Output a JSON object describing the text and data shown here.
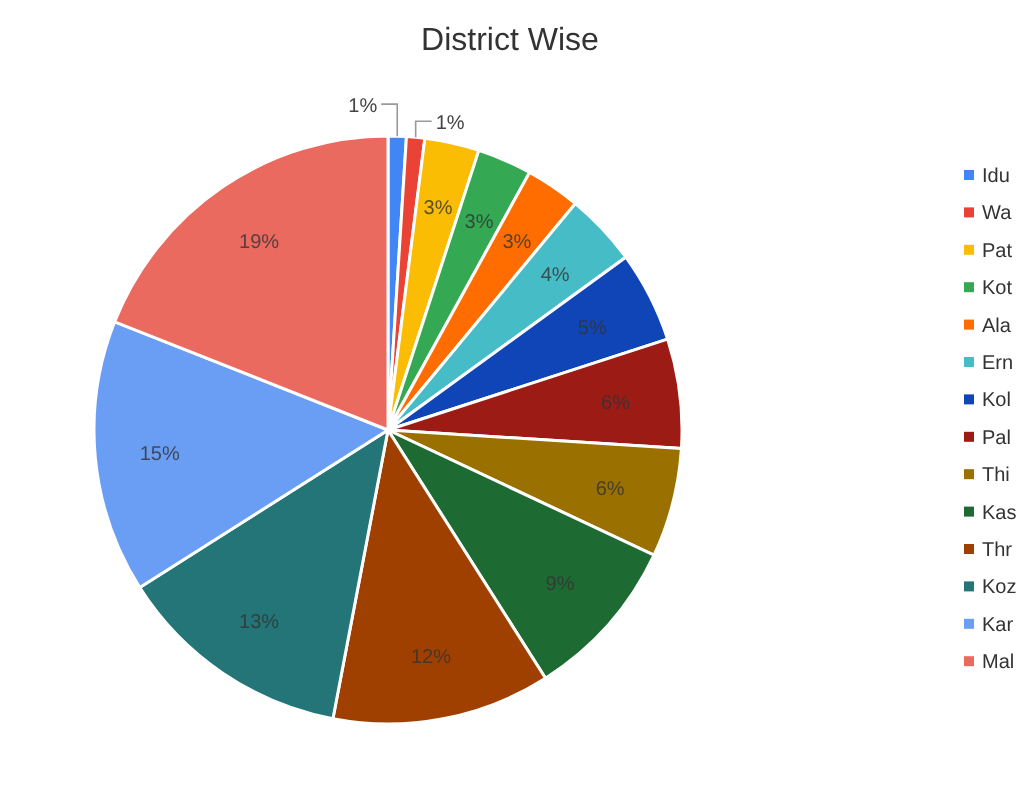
{
  "chart_data": {
    "type": "pie",
    "title": "District Wise",
    "categories": [
      "Idu",
      "Wa",
      "Pat",
      "Kot",
      "Ala",
      "Ern",
      "Kol",
      "Pal",
      "Thi",
      "Kas",
      "Thr",
      "Koz",
      "Kar",
      "Mal"
    ],
    "values": [
      1,
      1,
      3,
      3,
      3,
      4,
      5,
      6,
      6,
      9,
      12,
      13,
      15,
      19
    ],
    "colors": [
      "#4285f4",
      "#ea4335",
      "#fbbc04",
      "#34a853",
      "#ff6d01",
      "#46bdc6",
      "#1045b8",
      "#9c1b14",
      "#9a7000",
      "#1e6a33",
      "#a04000",
      "#237577",
      "#6a9ef5",
      "#ea6a5f"
    ],
    "value_labels": [
      "1%",
      "1%",
      "3%",
      "3%",
      "3%",
      "4%",
      "5%",
      "6%",
      "6%",
      "9%",
      "12%",
      "13%",
      "15%",
      "19%"
    ],
    "legend": "right"
  }
}
